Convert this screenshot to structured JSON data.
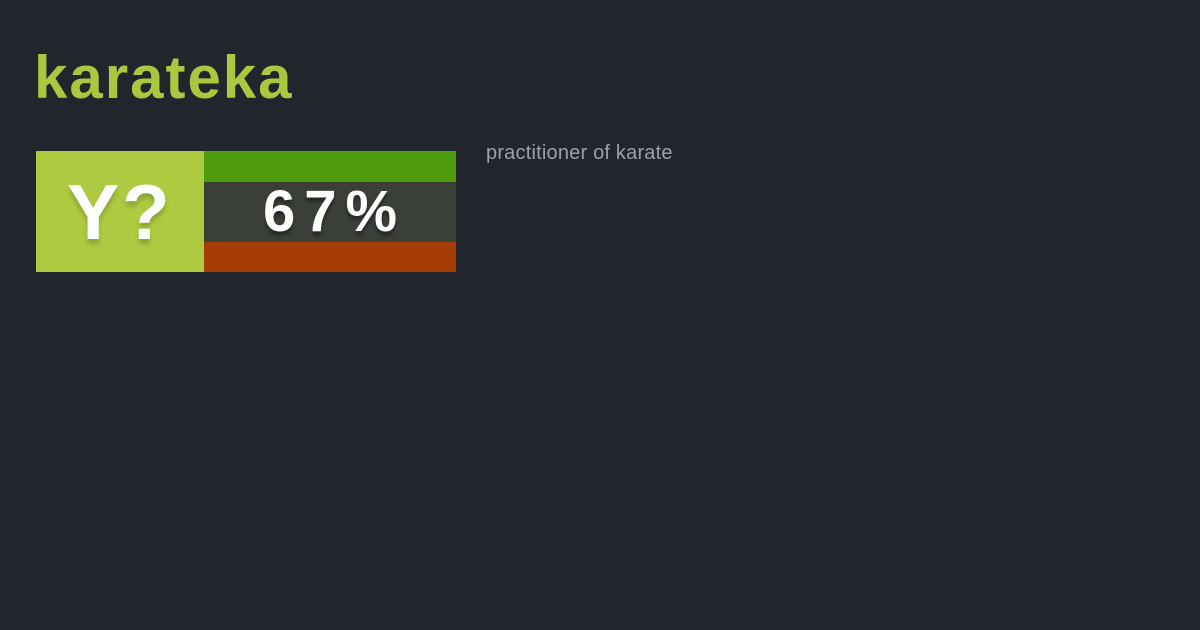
{
  "colors": {
    "background": "#22262c",
    "title_text": "#a9c83f",
    "question_block_bg": "#adca40",
    "badge_text": "#fdfdfd",
    "yes_bar": "#4f9d0f",
    "percent_bg": "#3a3f37",
    "no_bar": "#a63c06",
    "definition_text": "#98a2ab"
  },
  "word_card": {
    "title": "karateka",
    "definition": "practitioner of karate",
    "badge": {
      "question_label": "Y?",
      "percent": "67%"
    }
  }
}
